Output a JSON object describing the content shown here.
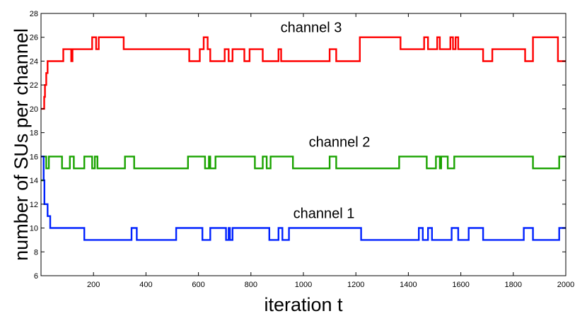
{
  "chart_data": {
    "type": "line",
    "title": "",
    "xlabel": "iteration t",
    "ylabel": "number of SUs per channel",
    "xlim": [
      0,
      2000
    ],
    "ylim": [
      6,
      28
    ],
    "xticks": [
      200,
      400,
      600,
      800,
      1000,
      1200,
      1400,
      1600,
      1800,
      2000
    ],
    "yticks": [
      6,
      8,
      10,
      12,
      14,
      16,
      18,
      20,
      22,
      24,
      26,
      28
    ],
    "grid": false,
    "series": [
      {
        "name": "channel 3",
        "color": "#ff0000",
        "points": [
          [
            0,
            20
          ],
          [
            12,
            20
          ],
          [
            12,
            21
          ],
          [
            15,
            21
          ],
          [
            15,
            22
          ],
          [
            20,
            22
          ],
          [
            20,
            23
          ],
          [
            25,
            23
          ],
          [
            25,
            24
          ],
          [
            85,
            24
          ],
          [
            85,
            25
          ],
          [
            115,
            25
          ],
          [
            115,
            24
          ],
          [
            120,
            24
          ],
          [
            120,
            25
          ],
          [
            195,
            25
          ],
          [
            195,
            26
          ],
          [
            210,
            26
          ],
          [
            210,
            25
          ],
          [
            220,
            25
          ],
          [
            220,
            26
          ],
          [
            315,
            26
          ],
          [
            315,
            25
          ],
          [
            565,
            25
          ],
          [
            565,
            24
          ],
          [
            605,
            24
          ],
          [
            605,
            25
          ],
          [
            620,
            25
          ],
          [
            620,
            26
          ],
          [
            635,
            26
          ],
          [
            635,
            25
          ],
          [
            645,
            25
          ],
          [
            645,
            24
          ],
          [
            700,
            24
          ],
          [
            700,
            25
          ],
          [
            715,
            25
          ],
          [
            715,
            24
          ],
          [
            730,
            24
          ],
          [
            730,
            25
          ],
          [
            775,
            25
          ],
          [
            775,
            24
          ],
          [
            795,
            24
          ],
          [
            795,
            25
          ],
          [
            845,
            25
          ],
          [
            845,
            24
          ],
          [
            905,
            24
          ],
          [
            905,
            25
          ],
          [
            915,
            25
          ],
          [
            915,
            24
          ],
          [
            1100,
            24
          ],
          [
            1100,
            25
          ],
          [
            1125,
            25
          ],
          [
            1125,
            24
          ],
          [
            1215,
            24
          ],
          [
            1215,
            26
          ],
          [
            1370,
            26
          ],
          [
            1370,
            25
          ],
          [
            1460,
            25
          ],
          [
            1460,
            26
          ],
          [
            1475,
            26
          ],
          [
            1475,
            25
          ],
          [
            1510,
            25
          ],
          [
            1510,
            26
          ],
          [
            1520,
            26
          ],
          [
            1520,
            25
          ],
          [
            1560,
            25
          ],
          [
            1560,
            26
          ],
          [
            1570,
            26
          ],
          [
            1570,
            25
          ],
          [
            1580,
            25
          ],
          [
            1580,
            26
          ],
          [
            1590,
            26
          ],
          [
            1590,
            25
          ],
          [
            1685,
            25
          ],
          [
            1685,
            24
          ],
          [
            1720,
            24
          ],
          [
            1720,
            25
          ],
          [
            1845,
            25
          ],
          [
            1845,
            24
          ],
          [
            1875,
            24
          ],
          [
            1875,
            26
          ],
          [
            1970,
            26
          ],
          [
            1970,
            24
          ],
          [
            2000,
            24
          ]
        ]
      },
      {
        "name": "channel 2",
        "color": "#1aa300",
        "points": [
          [
            0,
            14
          ],
          [
            10,
            14
          ],
          [
            10,
            16
          ],
          [
            20,
            16
          ],
          [
            20,
            15
          ],
          [
            30,
            15
          ],
          [
            30,
            16
          ],
          [
            80,
            16
          ],
          [
            80,
            15
          ],
          [
            110,
            15
          ],
          [
            110,
            16
          ],
          [
            125,
            16
          ],
          [
            125,
            15
          ],
          [
            165,
            15
          ],
          [
            165,
            16
          ],
          [
            195,
            16
          ],
          [
            195,
            15
          ],
          [
            205,
            15
          ],
          [
            205,
            16
          ],
          [
            215,
            16
          ],
          [
            215,
            15
          ],
          [
            320,
            15
          ],
          [
            320,
            16
          ],
          [
            355,
            16
          ],
          [
            355,
            15
          ],
          [
            560,
            15
          ],
          [
            560,
            16
          ],
          [
            625,
            16
          ],
          [
            625,
            15
          ],
          [
            640,
            15
          ],
          [
            640,
            16
          ],
          [
            645,
            16
          ],
          [
            645,
            15
          ],
          [
            665,
            15
          ],
          [
            665,
            16
          ],
          [
            815,
            16
          ],
          [
            815,
            15
          ],
          [
            845,
            15
          ],
          [
            845,
            16
          ],
          [
            860,
            16
          ],
          [
            860,
            15
          ],
          [
            875,
            15
          ],
          [
            875,
            16
          ],
          [
            960,
            16
          ],
          [
            960,
            15
          ],
          [
            1100,
            15
          ],
          [
            1100,
            16
          ],
          [
            1125,
            16
          ],
          [
            1125,
            15
          ],
          [
            1365,
            15
          ],
          [
            1365,
            16
          ],
          [
            1470,
            16
          ],
          [
            1470,
            15
          ],
          [
            1505,
            15
          ],
          [
            1505,
            16
          ],
          [
            1520,
            16
          ],
          [
            1520,
            15
          ],
          [
            1525,
            15
          ],
          [
            1525,
            16
          ],
          [
            1550,
            16
          ],
          [
            1550,
            15
          ],
          [
            1575,
            15
          ],
          [
            1575,
            16
          ],
          [
            1875,
            16
          ],
          [
            1875,
            15
          ],
          [
            1975,
            15
          ],
          [
            1975,
            16
          ],
          [
            2000,
            16
          ]
        ]
      },
      {
        "name": "channel 1",
        "color": "#0022ff",
        "points": [
          [
            0,
            16
          ],
          [
            10,
            16
          ],
          [
            10,
            14
          ],
          [
            13,
            14
          ],
          [
            13,
            12
          ],
          [
            25,
            12
          ],
          [
            25,
            11
          ],
          [
            35,
            11
          ],
          [
            35,
            10
          ],
          [
            165,
            10
          ],
          [
            165,
            9
          ],
          [
            345,
            9
          ],
          [
            345,
            10
          ],
          [
            365,
            10
          ],
          [
            365,
            9
          ],
          [
            515,
            9
          ],
          [
            515,
            10
          ],
          [
            615,
            10
          ],
          [
            615,
            9
          ],
          [
            645,
            9
          ],
          [
            645,
            10
          ],
          [
            705,
            10
          ],
          [
            705,
            9
          ],
          [
            715,
            9
          ],
          [
            715,
            10
          ],
          [
            720,
            10
          ],
          [
            720,
            9
          ],
          [
            730,
            9
          ],
          [
            730,
            10
          ],
          [
            870,
            10
          ],
          [
            870,
            9
          ],
          [
            905,
            9
          ],
          [
            905,
            10
          ],
          [
            920,
            10
          ],
          [
            920,
            9
          ],
          [
            945,
            9
          ],
          [
            945,
            10
          ],
          [
            1220,
            10
          ],
          [
            1220,
            9
          ],
          [
            1440,
            9
          ],
          [
            1440,
            10
          ],
          [
            1455,
            10
          ],
          [
            1455,
            9
          ],
          [
            1475,
            9
          ],
          [
            1475,
            10
          ],
          [
            1490,
            10
          ],
          [
            1490,
            9
          ],
          [
            1565,
            9
          ],
          [
            1565,
            10
          ],
          [
            1590,
            10
          ],
          [
            1590,
            9
          ],
          [
            1630,
            9
          ],
          [
            1630,
            10
          ],
          [
            1685,
            10
          ],
          [
            1685,
            9
          ],
          [
            1840,
            9
          ],
          [
            1840,
            10
          ],
          [
            1875,
            10
          ],
          [
            1875,
            9
          ],
          [
            1975,
            9
          ],
          [
            1975,
            10
          ],
          [
            2000,
            10
          ]
        ]
      }
    ]
  }
}
